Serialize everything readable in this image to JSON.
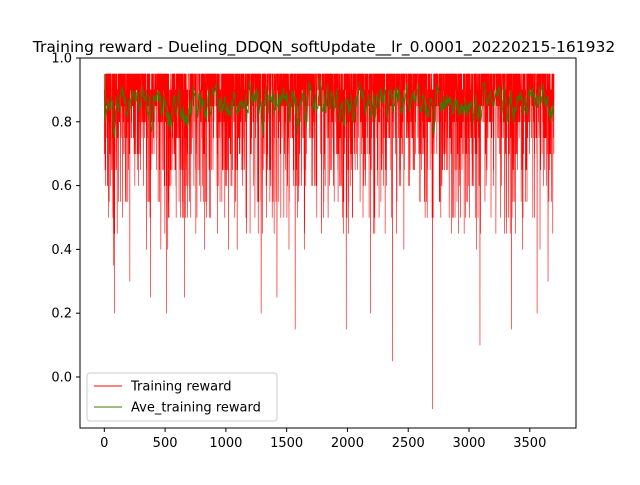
{
  "chart_data": {
    "type": "line",
    "title": "Training reward - Dueling_DDQN_softUpdate__lr_0.0001_20220215-161932",
    "xlabel": "",
    "ylabel": "",
    "xlim": [
      -200,
      3880
    ],
    "ylim": [
      -0.16,
      1.0
    ],
    "x_ticks": [
      0,
      500,
      1000,
      1500,
      2000,
      2500,
      3000,
      3500
    ],
    "x_tick_labels": [
      "0",
      "500",
      "1000",
      "1500",
      "2000",
      "2500",
      "3000",
      "3500"
    ],
    "y_ticks": [
      0.0,
      0.2,
      0.4,
      0.6,
      0.8,
      1.0
    ],
    "y_tick_labels": [
      "0.0",
      "0.2",
      "0.4",
      "0.6",
      "0.8",
      "1.0"
    ],
    "grid": false,
    "legend_position": "lower-left",
    "episodes": 3700,
    "series": [
      {
        "name": "Training reward",
        "color": "#ff0000",
        "range": [
          0.5,
          0.95
        ],
        "notable_dips": [
          {
            "x": 75,
            "y": 0.35
          },
          {
            "x": 85,
            "y": 0.2
          },
          {
            "x": 210,
            "y": 0.3
          },
          {
            "x": 380,
            "y": 0.25
          },
          {
            "x": 510,
            "y": 0.2
          },
          {
            "x": 660,
            "y": 0.25
          },
          {
            "x": 1290,
            "y": 0.2
          },
          {
            "x": 1420,
            "y": 0.25
          },
          {
            "x": 1570,
            "y": 0.15
          },
          {
            "x": 1990,
            "y": 0.15
          },
          {
            "x": 2190,
            "y": 0.2
          },
          {
            "x": 2370,
            "y": 0.05
          },
          {
            "x": 2700,
            "y": -0.1
          },
          {
            "x": 3090,
            "y": 0.1
          },
          {
            "x": 3350,
            "y": 0.15
          },
          {
            "x": 3560,
            "y": 0.2
          },
          {
            "x": 3650,
            "y": 0.3
          }
        ]
      },
      {
        "name": "Ave_training reward",
        "color": "#3a7a00",
        "range": [
          0.7,
          0.86
        ]
      }
    ]
  }
}
